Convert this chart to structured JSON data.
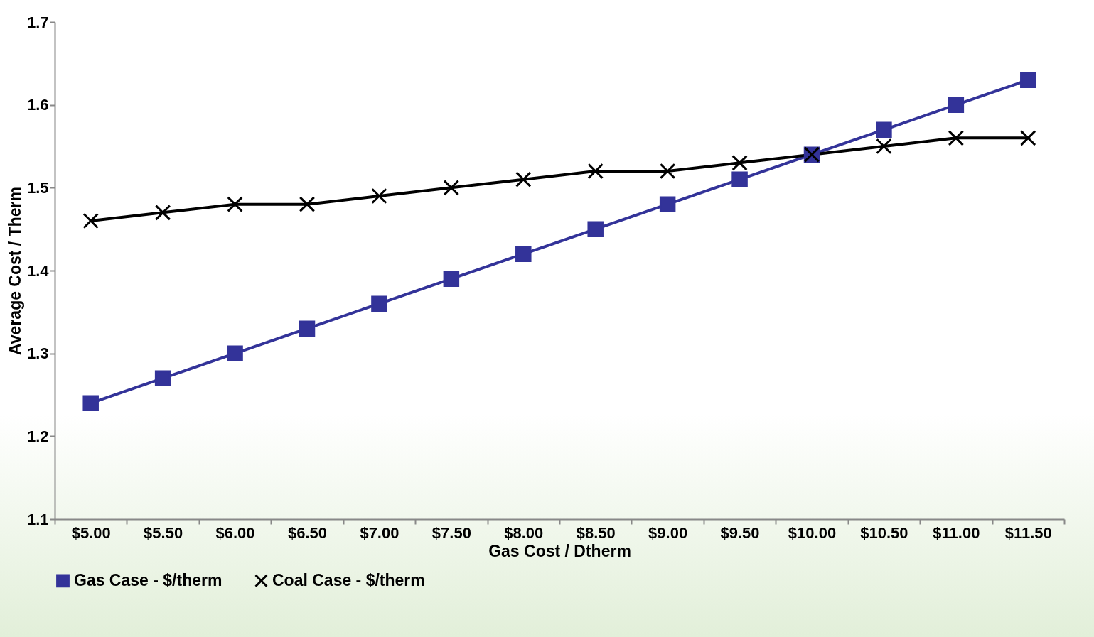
{
  "chart_data": {
    "type": "line",
    "xlabel": "Gas Cost / Dtherm",
    "ylabel": "Average Cost / Therm",
    "categories": [
      "$5.00",
      "$5.50",
      "$6.00",
      "$6.50",
      "$7.00",
      "$7.50",
      "$8.00",
      "$8.50",
      "$9.00",
      "$9.50",
      "$10.00",
      "$10.50",
      "$11.00",
      "$11.50"
    ],
    "series": [
      {
        "name": "Gas Case - $/therm",
        "color": "#333399",
        "marker": "square",
        "values": [
          1.24,
          1.27,
          1.3,
          1.33,
          1.36,
          1.39,
          1.42,
          1.45,
          1.48,
          1.51,
          1.54,
          1.57,
          1.6,
          1.63
        ]
      },
      {
        "name": "Coal Case - $/therm",
        "color": "#000000",
        "marker": "cross",
        "values": [
          1.46,
          1.47,
          1.48,
          1.48,
          1.49,
          1.5,
          1.51,
          1.52,
          1.52,
          1.53,
          1.54,
          1.55,
          1.56,
          1.56
        ]
      }
    ],
    "ylim": [
      1.1,
      1.7
    ],
    "yticks": [
      1.1,
      1.2,
      1.3,
      1.4,
      1.5,
      1.6,
      1.7
    ],
    "grid": false,
    "legend": "bottom",
    "line_style": "solid"
  }
}
